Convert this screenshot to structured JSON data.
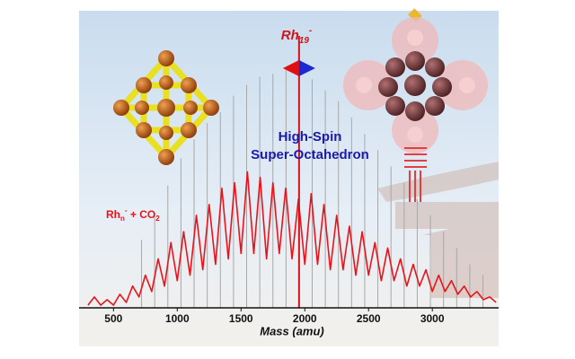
{
  "chart_data": {
    "type": "spectrum",
    "highlight_label": {
      "base": "Rh",
      "sub": "19",
      "sup": "-"
    },
    "title_lines": [
      "High-Spin",
      "Super-Octahedron"
    ],
    "annotation": {
      "base": "Rh",
      "sub": "n",
      "sup": "-",
      "rest": " + CO",
      "rest_sub": "2"
    },
    "x_label": "Mass (amu)",
    "xlim": [
      230,
      3520
    ],
    "xticks": [
      500,
      1000,
      1500,
      2000,
      2500,
      3000
    ],
    "ylim": [
      0,
      100
    ],
    "spectrum": {
      "color": "#e8141b",
      "x": [
        300,
        350,
        400,
        450,
        500,
        550,
        600,
        650,
        700,
        750,
        800,
        850,
        900,
        950,
        1000,
        1050,
        1100,
        1150,
        1200,
        1250,
        1300,
        1350,
        1400,
        1450,
        1500,
        1550,
        1600,
        1650,
        1700,
        1750,
        1800,
        1850,
        1900,
        1950,
        2000,
        2050,
        2100,
        2150,
        2200,
        2250,
        2300,
        2350,
        2400,
        2450,
        2500,
        2550,
        2600,
        2650,
        2700,
        2750,
        2800,
        2850,
        2900,
        2950,
        3000,
        3050,
        3100,
        3150,
        3200,
        3250,
        3300,
        3350,
        3400,
        3450,
        3500
      ],
      "values": [
        1,
        4,
        1,
        3,
        1,
        5,
        2,
        8,
        4,
        12,
        6,
        18,
        8,
        24,
        10,
        28,
        12,
        34,
        14,
        38,
        16,
        44,
        18,
        46,
        20,
        50,
        20,
        48,
        18,
        46,
        20,
        44,
        18,
        40,
        16,
        42,
        16,
        38,
        14,
        34,
        14,
        30,
        12,
        28,
        12,
        24,
        10,
        22,
        10,
        18,
        8,
        16,
        8,
        14,
        6,
        12,
        6,
        10,
        5,
        8,
        4,
        6,
        3,
        4,
        2
      ]
    },
    "peaks": {
      "color": "#a8a8a8",
      "x": [
        720,
        823,
        926,
        1029,
        1132,
        1235,
        1338,
        1441,
        1544,
        1647,
        1750,
        1853,
        2058,
        2161,
        2264,
        2367,
        2470,
        2573,
        2676,
        2779,
        2882,
        2985,
        3088,
        3191,
        3294,
        3397
      ],
      "values": [
        25,
        35,
        45,
        55,
        62,
        68,
        72,
        78,
        82,
        85,
        86,
        88,
        84,
        80,
        76,
        70,
        64,
        58,
        52,
        46,
        40,
        34,
        28,
        22,
        16,
        12
      ]
    },
    "highlight": {
      "color": "#d0141b",
      "x": 1955,
      "value": 100
    },
    "title_color": "#1a1aa8",
    "annotation_color": "#e8141b"
  }
}
